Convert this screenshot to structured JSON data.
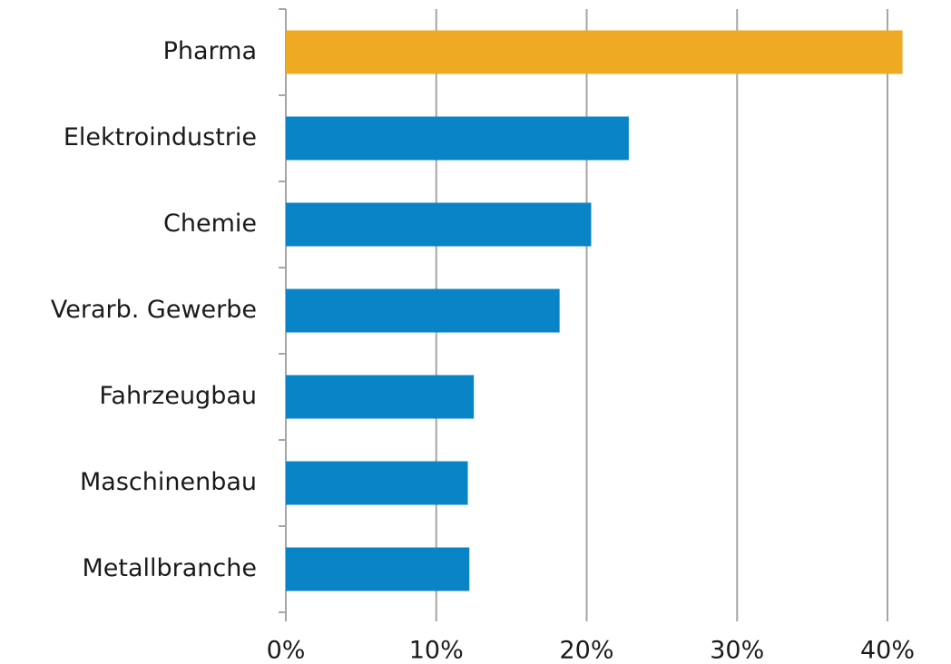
{
  "chart_data": {
    "type": "hbar",
    "categories": [
      "Pharma",
      "Elektroindustrie",
      "Chemie",
      "Verarb. Gewerbe",
      "Fahrzeugbau",
      "Maschinenbau",
      "Metallbranche"
    ],
    "values": [
      41.0,
      22.8,
      20.3,
      18.2,
      12.5,
      12.1,
      12.2
    ],
    "colors": [
      "#eeaa22",
      "#0984c6",
      "#0984c6",
      "#0984c6",
      "#0984c6",
      "#0984c6",
      "#0984c6"
    ],
    "xlim": [
      0,
      44
    ],
    "xticks": [
      {
        "value": 0,
        "label": "0%"
      },
      {
        "value": 10,
        "label": "10%"
      },
      {
        "value": 20,
        "label": "20%"
      },
      {
        "value": 30,
        "label": "30%"
      },
      {
        "value": 40,
        "label": "40%"
      }
    ],
    "grid": true
  }
}
